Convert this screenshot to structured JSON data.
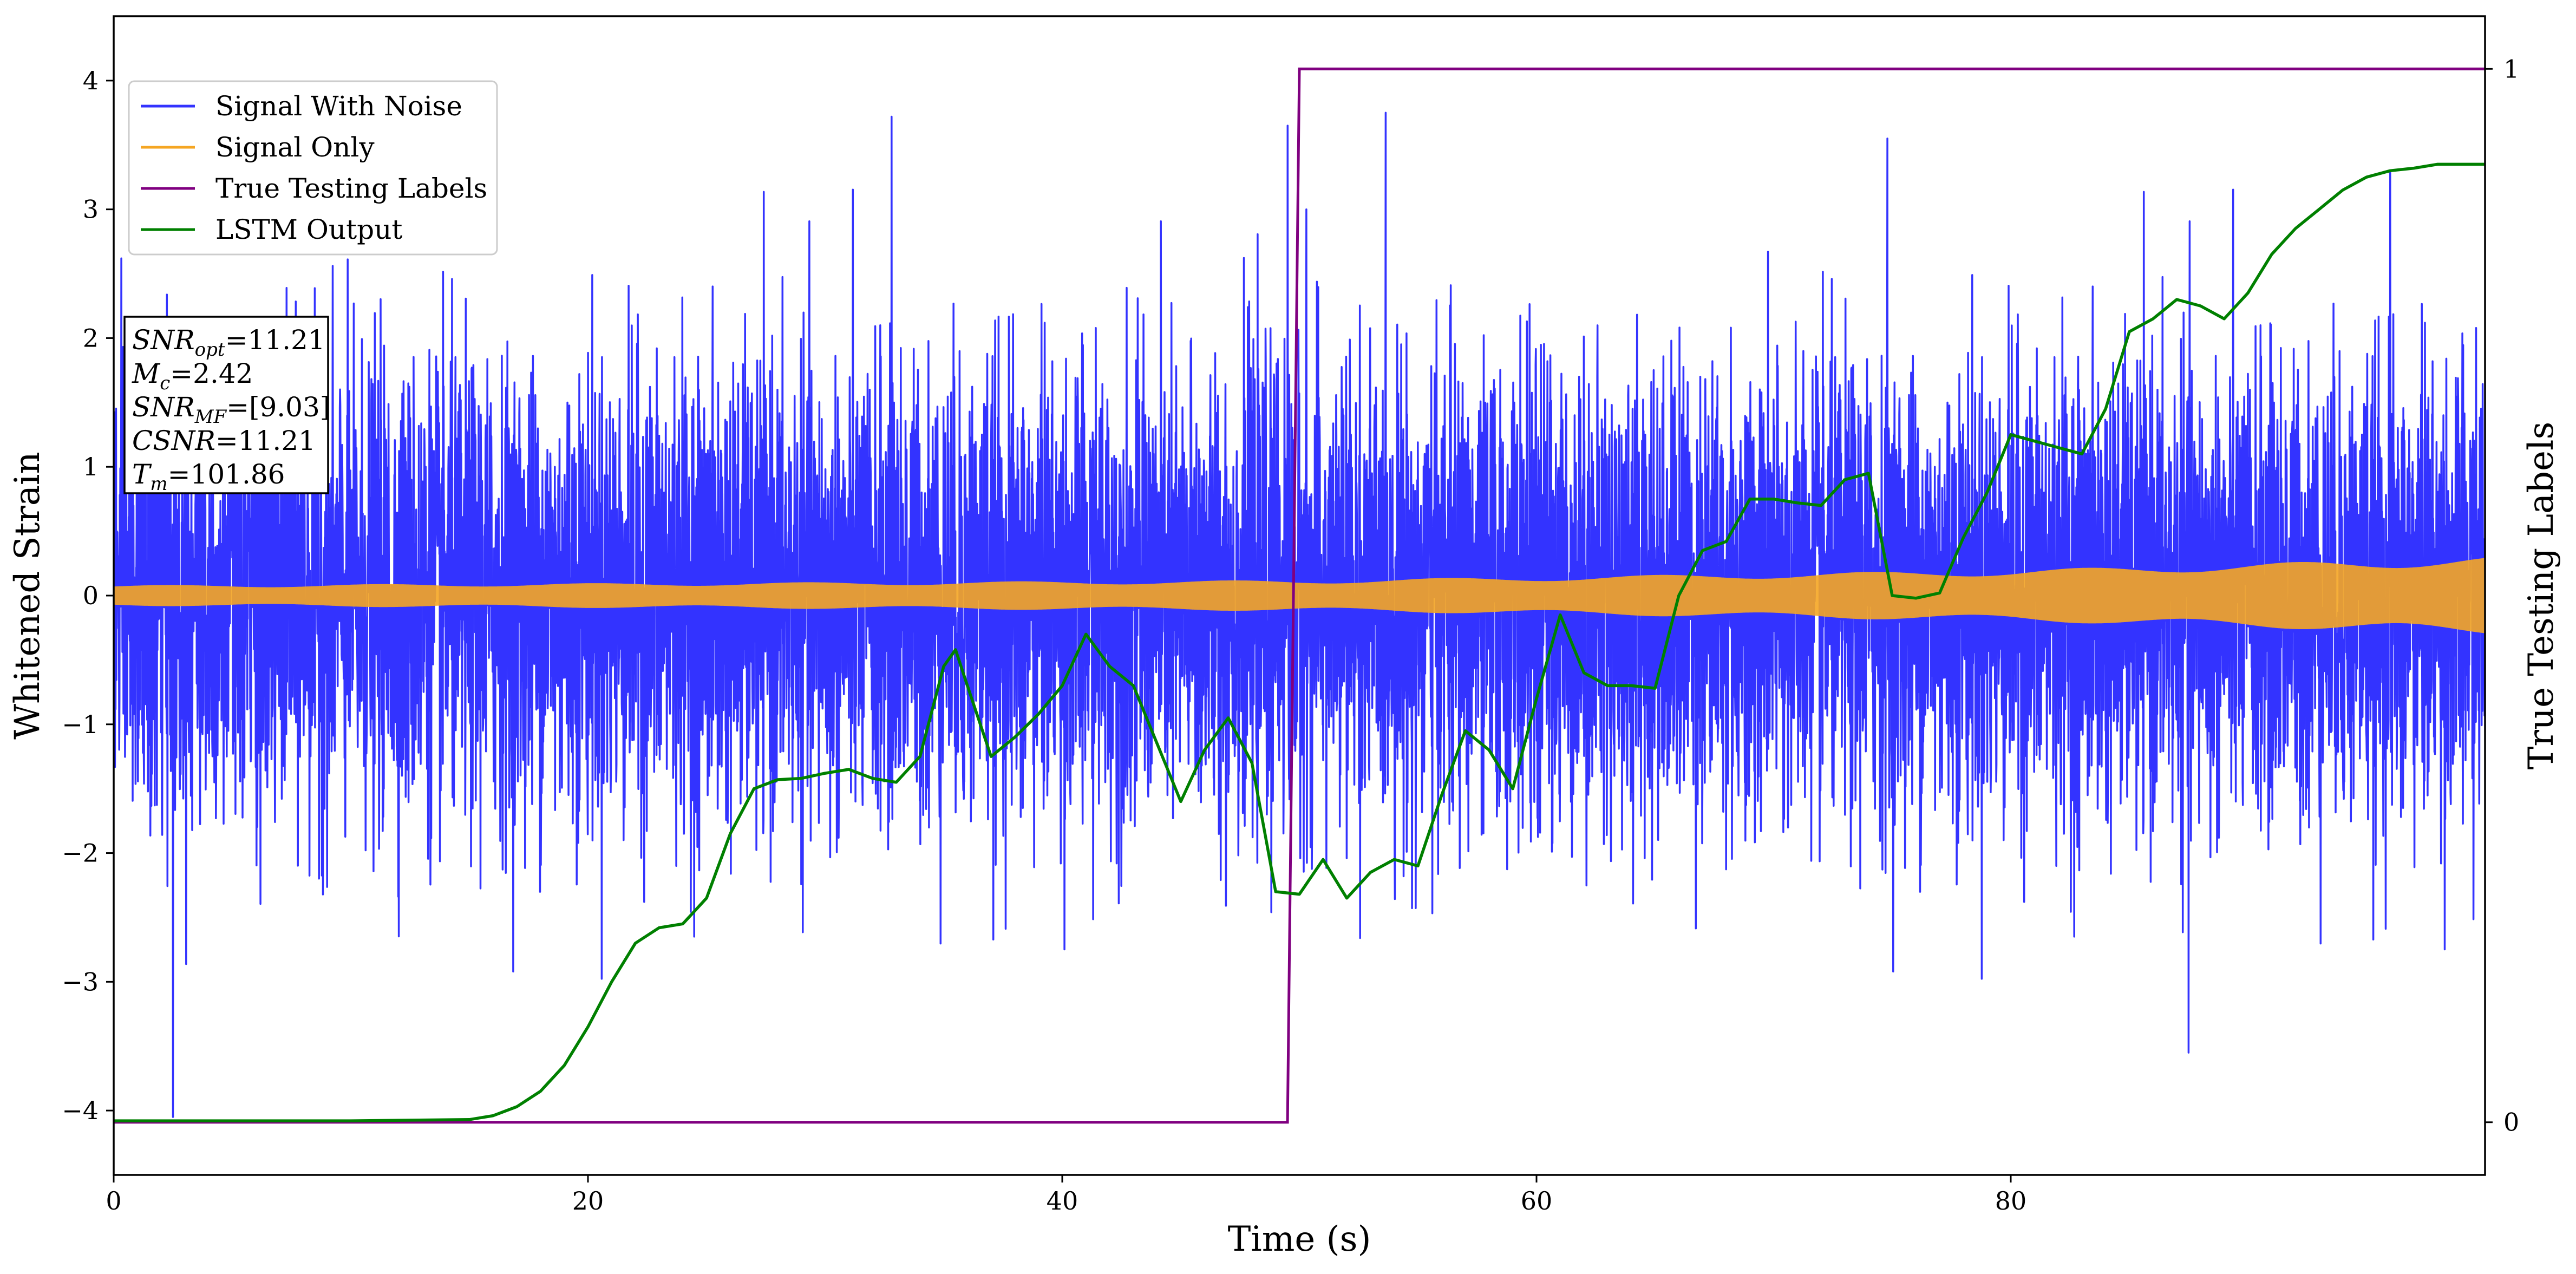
{
  "chart_data": {
    "type": "line",
    "xlabel": "Time (s)",
    "ylabel": "Whitened Strain",
    "y2label": "True Testing Labels",
    "xlim": [
      0,
      100
    ],
    "ylim": [
      -4.5,
      4.5
    ],
    "y2lim": [
      -0.05,
      1.05
    ],
    "xticks": [
      0,
      20,
      40,
      60,
      80
    ],
    "yticks": [
      -4,
      -3,
      -2,
      -1,
      0,
      1,
      2,
      3,
      4
    ],
    "y2ticks": [
      0,
      1
    ],
    "grid": false,
    "legend_position": "top-left",
    "series": [
      {
        "name": "Signal With Noise",
        "axis": "left",
        "color": "#3333ff",
        "description": "dense noisy strain, mostly within ±2, spikes up to ~3.7 and down to ~-4.0",
        "notable_points": [
          {
            "x": 2.5,
            "y": -4.05
          },
          {
            "x": 32.8,
            "y": 3.72
          },
          {
            "x": 49.5,
            "y": 3.65
          },
          {
            "x": 50.3,
            "y": 3.0
          },
          {
            "x": 74.8,
            "y": 3.55
          },
          {
            "x": 87.5,
            "y": -3.55
          },
          {
            "x": 96.0,
            "y": 3.3
          }
        ]
      },
      {
        "name": "Signal Only",
        "axis": "left",
        "color": "#f5a623",
        "description": "chirp whose envelope grows from ~±0.08 at t=0 to ~±0.3 at t=100",
        "envelope": {
          "x": [
            0,
            50,
            80,
            100
          ],
          "amplitude": [
            0.08,
            0.12,
            0.2,
            0.3
          ]
        }
      },
      {
        "name": "True Testing Labels",
        "axis": "right",
        "color": "#800080",
        "x": [
          0,
          49.5,
          50.0,
          100
        ],
        "y": [
          0,
          0,
          1,
          1
        ]
      },
      {
        "name": "LSTM Output",
        "axis": "left",
        "color": "#008000",
        "x": [
          0,
          5,
          10,
          15,
          16,
          17,
          18,
          19,
          20,
          21,
          22,
          23,
          24,
          25,
          26,
          27,
          28,
          29,
          30,
          31,
          32,
          33,
          34,
          35,
          35.5,
          36,
          37,
          38,
          39,
          40,
          41,
          42,
          43,
          44,
          45,
          46,
          47,
          48,
          49,
          50,
          51,
          52,
          53,
          54,
          55,
          56,
          57,
          58,
          59,
          60,
          61,
          62,
          63,
          64,
          65,
          66,
          67,
          68,
          69,
          70,
          71,
          72,
          73,
          74,
          75,
          76,
          77,
          78,
          79,
          80,
          81,
          82,
          83,
          84,
          85,
          86,
          87,
          88,
          89,
          90,
          91,
          92,
          93,
          94,
          95,
          96,
          97,
          98,
          99,
          100
        ],
        "y": [
          -4.08,
          -4.08,
          -4.08,
          -4.07,
          -4.04,
          -3.97,
          -3.85,
          -3.65,
          -3.35,
          -3.0,
          -2.7,
          -2.58,
          -2.55,
          -2.35,
          -1.85,
          -1.5,
          -1.43,
          -1.42,
          -1.38,
          -1.35,
          -1.42,
          -1.45,
          -1.25,
          -0.55,
          -0.42,
          -0.7,
          -1.25,
          -1.1,
          -0.92,
          -0.7,
          -0.3,
          -0.55,
          -0.7,
          -1.15,
          -1.6,
          -1.2,
          -0.95,
          -1.3,
          -2.3,
          -2.32,
          -2.05,
          -2.35,
          -2.15,
          -2.05,
          -2.1,
          -1.55,
          -1.05,
          -1.2,
          -1.5,
          -0.8,
          -0.15,
          -0.6,
          -0.7,
          -0.7,
          -0.72,
          0.0,
          0.35,
          0.42,
          0.75,
          0.75,
          0.72,
          0.7,
          0.9,
          0.95,
          0.0,
          -0.02,
          0.02,
          0.45,
          0.8,
          1.25,
          1.2,
          1.15,
          1.1,
          1.45,
          2.05,
          2.15,
          2.3,
          2.25,
          2.15,
          2.35,
          2.65,
          2.85,
          3.0,
          3.15,
          3.25,
          3.3,
          3.32,
          3.35,
          3.35,
          3.35
        ]
      }
    ],
    "annotation_lines": [
      {
        "label": "SNR",
        "sub": "opt",
        "value": "=11.21"
      },
      {
        "label": "M",
        "sub": "c",
        "value": "=2.42"
      },
      {
        "label": "SNR",
        "sub": "MF",
        "value": "=[9.03]"
      },
      {
        "label": "CSNR",
        "sub": "",
        "value": "=11.21"
      },
      {
        "label": "T",
        "sub": "m",
        "value": "=101.86"
      }
    ]
  }
}
